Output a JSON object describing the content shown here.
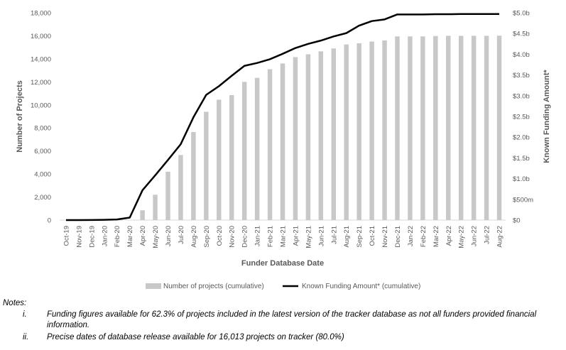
{
  "chart_data": {
    "type": "bar+line",
    "xlabel": "Funder Database Date",
    "ylabel_left": "Number of Projects",
    "ylabel_right": "Known Funding Amount*",
    "categories": [
      "Oct-19",
      "Nov-19",
      "Dec-19",
      "Jan-20",
      "Feb-20",
      "Mar-20",
      "Apr-20",
      "May-20",
      "Jun-20",
      "Jul-20",
      "Aug-20",
      "Sep-20",
      "Oct-20",
      "Nov-20",
      "Dec-20",
      "Jan-21",
      "Feb-21",
      "Mar-21",
      "Apr-21",
      "May-21",
      "Jun-21",
      "Jul-21",
      "Aug-21",
      "Sep-21",
      "Oct-21",
      "Nov-21",
      "Dec-21",
      "Jan-22",
      "Feb-22",
      "Mar-22",
      "Apr-22",
      "May-22",
      "Jun-22",
      "Jul-22",
      "Aug-22"
    ],
    "y_left_lim": [
      0,
      18000
    ],
    "y_left_ticks": [
      "0",
      "2,000",
      "4,000",
      "6,000",
      "8,000",
      "10,000",
      "12,000",
      "14,000",
      "16,000",
      "18,000"
    ],
    "y_right_lim": [
      0,
      5000000000
    ],
    "y_right_ticks": [
      "$0",
      "$500m",
      "$1.0b",
      "$1.5b",
      "$2.0b",
      "$2.5b",
      "$3.0b",
      "$3.5b",
      "$4.0b",
      "$4.5b",
      "$5.0b"
    ],
    "series": [
      {
        "name": "Number of projects (cumulative)",
        "kind": "bar",
        "axis": "left",
        "color": "#c8c8c8",
        "values": [
          0,
          0,
          0,
          0,
          0,
          0,
          850,
          2200,
          4200,
          5650,
          7650,
          9400,
          10450,
          10850,
          12000,
          12350,
          13100,
          13600,
          14150,
          14400,
          14650,
          14900,
          15250,
          15350,
          15500,
          15600,
          15950,
          15950,
          15950,
          15980,
          16000,
          16000,
          16000,
          16000,
          16013
        ]
      },
      {
        "name": "Known Funding Amount* (cumulative)",
        "kind": "line",
        "axis": "right",
        "color": "#000000",
        "values": [
          0,
          0,
          3000000,
          7000000,
          15000000,
          60000000,
          720000000,
          1080000000,
          1450000000,
          1830000000,
          2480000000,
          3020000000,
          3230000000,
          3480000000,
          3720000000,
          3790000000,
          3880000000,
          4010000000,
          4150000000,
          4250000000,
          4330000000,
          4430000000,
          4510000000,
          4690000000,
          4800000000,
          4840000000,
          4960000000,
          4960000000,
          4960000000,
          4965000000,
          4965000000,
          4970000000,
          4970000000,
          4970000000,
          4970000000
        ]
      }
    ],
    "legend_position": "bottom",
    "grid": false
  },
  "notes": {
    "heading": "Notes:",
    "items": [
      {
        "marker": "i.",
        "text": "Funding figures available for 62.3% of projects included in the latest version of the tracker database as not all funders provided financial information."
      },
      {
        "marker": "ii.",
        "text": "Precise dates of database release available for 16,013 projects on tracker (80.0%)"
      }
    ]
  }
}
